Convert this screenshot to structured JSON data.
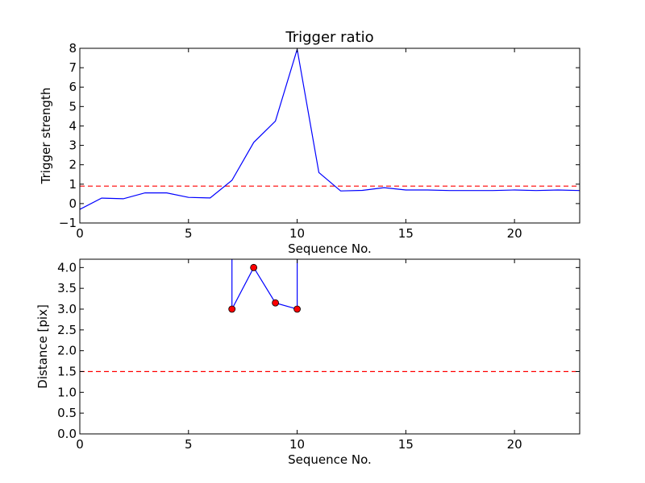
{
  "chart_data": [
    {
      "type": "line",
      "title": "Trigger ratio",
      "xlabel": "Sequence No.",
      "ylabel": "Trigger strength",
      "xlim": [
        0,
        23
      ],
      "ylim": [
        -1,
        8
      ],
      "xticks": [
        0,
        5,
        10,
        15,
        20
      ],
      "yticks": [
        -1,
        0,
        1,
        2,
        3,
        4,
        5,
        6,
        7,
        8
      ],
      "xtick_labels": [
        "0",
        "5",
        "10",
        "15",
        "20"
      ],
      "ytick_labels": [
        "−1",
        "0",
        "1",
        "2",
        "3",
        "4",
        "5",
        "6",
        "7",
        "8"
      ],
      "series": [
        {
          "color": "#0000ff",
          "style": "solid",
          "x": [
            0,
            1,
            2,
            3,
            4,
            5,
            6,
            7,
            8,
            9,
            10,
            11,
            12,
            13,
            14,
            15,
            16,
            17,
            18,
            19,
            20,
            21,
            22,
            23
          ],
          "y": [
            -0.3,
            0.28,
            0.25,
            0.55,
            0.55,
            0.32,
            0.29,
            1.2,
            3.15,
            4.25,
            7.95,
            1.6,
            0.65,
            0.68,
            0.82,
            0.7,
            0.7,
            0.67,
            0.67,
            0.67,
            0.7,
            0.67,
            0.7,
            0.67
          ]
        }
      ],
      "threshold": {
        "y": 0.9,
        "color": "#ff0000",
        "style": "dashed"
      },
      "grid": false
    },
    {
      "type": "line",
      "title": "",
      "xlabel": "Sequence No.",
      "ylabel": "Distance [pix]",
      "xlim": [
        0,
        23
      ],
      "ylim": [
        0,
        4.2
      ],
      "xticks": [
        0,
        5,
        10,
        15,
        20
      ],
      "yticks": [
        0.0,
        0.5,
        1.0,
        1.5,
        2.0,
        2.5,
        3.0,
        3.5,
        4.0
      ],
      "xtick_labels": [
        "0",
        "5",
        "10",
        "15",
        "20"
      ],
      "ytick_labels": [
        "0.0",
        "0.5",
        "1.0",
        "1.5",
        "2.0",
        "2.5",
        "3.0",
        "3.5",
        "4.0"
      ],
      "series": [
        {
          "color": "#0000ff",
          "style": "solid",
          "marker_color": "#ff0000",
          "x": [
            7,
            7,
            8,
            9,
            10,
            10
          ],
          "y": [
            4.2,
            3.0,
            4.0,
            3.15,
            3.0,
            4.2
          ],
          "marker_x": [
            7,
            8,
            9,
            10
          ],
          "marker_y": [
            3.0,
            4.0,
            3.15,
            3.0
          ]
        }
      ],
      "threshold": {
        "y": 1.5,
        "color": "#ff0000",
        "style": "dashed"
      },
      "grid": false
    }
  ]
}
